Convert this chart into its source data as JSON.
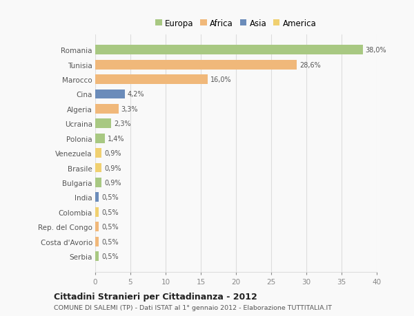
{
  "countries": [
    "Romania",
    "Tunisia",
    "Marocco",
    "Cina",
    "Algeria",
    "Ucraina",
    "Polonia",
    "Venezuela",
    "Brasile",
    "Bulgaria",
    "India",
    "Colombia",
    "Rep. del Congo",
    "Costa d'Avorio",
    "Serbia"
  ],
  "values": [
    38.0,
    28.6,
    16.0,
    4.2,
    3.3,
    2.3,
    1.4,
    0.9,
    0.9,
    0.9,
    0.5,
    0.5,
    0.5,
    0.5,
    0.5
  ],
  "labels": [
    "38,0%",
    "28,6%",
    "16,0%",
    "4,2%",
    "3,3%",
    "2,3%",
    "1,4%",
    "0,9%",
    "0,9%",
    "0,9%",
    "0,5%",
    "0,5%",
    "0,5%",
    "0,5%",
    "0,5%"
  ],
  "colors": [
    "#a8c882",
    "#f0b87a",
    "#f0b87a",
    "#6b8cba",
    "#f0b87a",
    "#a8c882",
    "#a8c882",
    "#f0d070",
    "#f0d070",
    "#a8c882",
    "#6b8cba",
    "#f0d070",
    "#f0b87a",
    "#f0b87a",
    "#a8c882"
  ],
  "legend": {
    "Europa": "#a8c882",
    "Africa": "#f0b87a",
    "Asia": "#6b8cba",
    "America": "#f0d070"
  },
  "title": "Cittadini Stranieri per Cittadinanza - 2012",
  "subtitle": "COMUNE DI SALEMI (TP) - Dati ISTAT al 1° gennaio 2012 - Elaborazione TUTTITALIA.IT",
  "xlim": [
    0,
    40
  ],
  "xticks": [
    0,
    5,
    10,
    15,
    20,
    25,
    30,
    35,
    40
  ],
  "background_color": "#f9f9f9",
  "grid_color": "#dddddd",
  "bar_height": 0.65
}
